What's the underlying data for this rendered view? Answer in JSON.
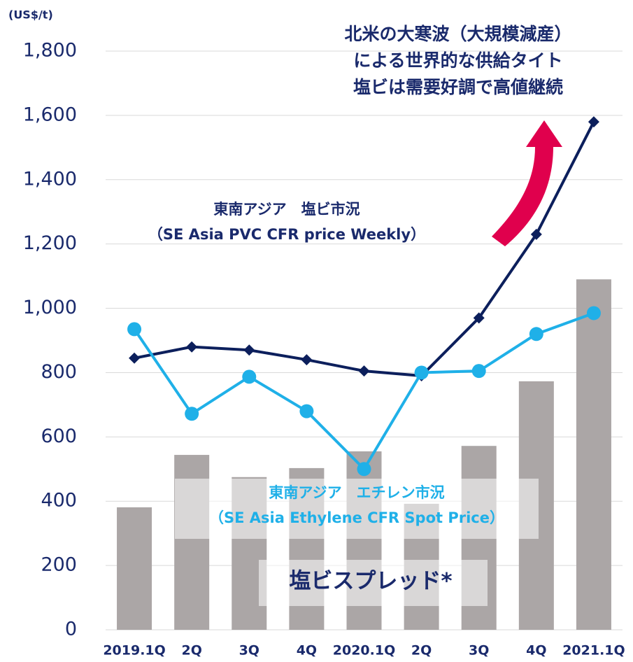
{
  "chart_data": {
    "type": "bar_line",
    "unit_label": "(US$/t)",
    "annotations": [
      "北米の大寒波（大規模減産）",
      "による世界的な供給タイト",
      "塩ビは需要好調で高値継続"
    ],
    "categories": [
      "2019.1Q",
      "2Q",
      "3Q",
      "4Q",
      "2020.1Q",
      "2Q",
      "3Q",
      "4Q",
      "2021.1Q"
    ],
    "series": [
      {
        "name": "塩ビスプレッド*",
        "type": "bar",
        "color": "#aba6a6",
        "values": [
          381,
          544,
          475,
          503,
          555,
          392,
          572,
          773,
          1090
        ]
      },
      {
        "name": "東南アジア　塩ビ市況",
        "name_en": "（SE Asia PVC CFR price Weekly）",
        "type": "line",
        "marker": "diamond",
        "color": "#0c1f5c",
        "values": [
          845,
          880,
          870,
          840,
          805,
          790,
          970,
          1230,
          1580
        ]
      },
      {
        "name": "東南アジア　エチレン市況",
        "name_en": "（SE Asia Ethylene CFR Spot Price）",
        "type": "line",
        "marker": "circle",
        "color": "#1fb0e8",
        "values": [
          935,
          672,
          787,
          680,
          500,
          800,
          805,
          920,
          985
        ]
      }
    ],
    "ylim": [
      0,
      1800
    ],
    "yticks": [
      0,
      200,
      400,
      600,
      800,
      {
        "value": 1000,
        "label": "1,000"
      },
      {
        "value": 1200,
        "label": "1,200"
      },
      {
        "value": 1400,
        "label": "1,400"
      },
      {
        "value": 1600,
        "label": "1,600"
      },
      {
        "value": 1800,
        "label": "1,800"
      }
    ],
    "grid": true
  }
}
